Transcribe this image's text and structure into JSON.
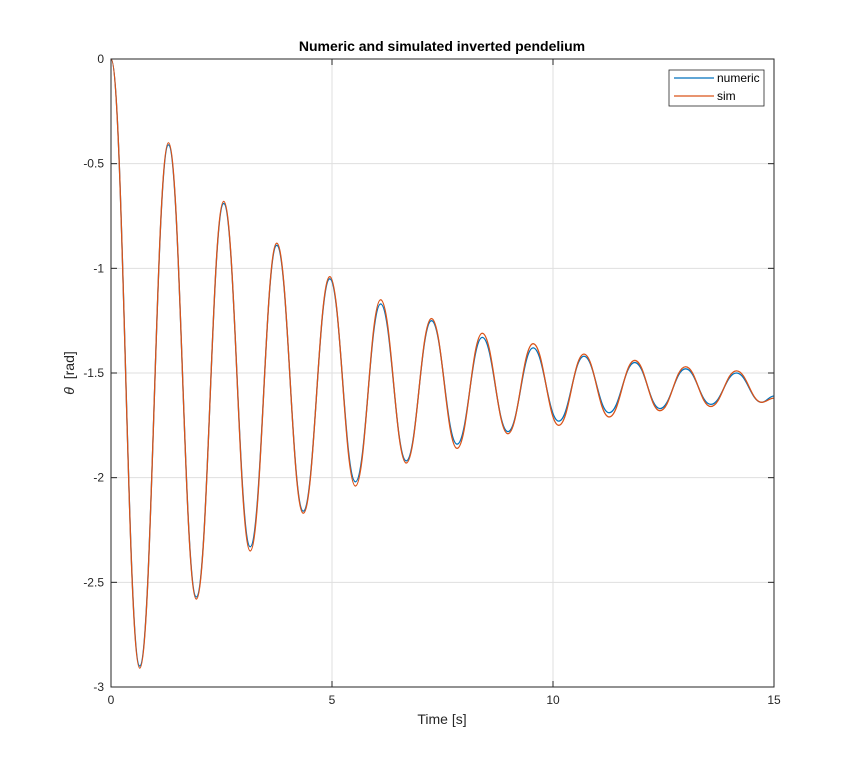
{
  "chart_data": {
    "type": "line",
    "title": "Numeric and simulated inverted pendelium",
    "xlabel": "Time [s]",
    "ylabel_symbol": "θ",
    "ylabel_unit": "[rad]",
    "xlim": [
      0,
      15
    ],
    "ylim": [
      -3,
      0
    ],
    "xticks": [
      0,
      5,
      10,
      15
    ],
    "yticks": [
      0,
      -0.5,
      -1,
      -1.5,
      -2,
      -2.5,
      -3
    ],
    "xtick_labels": [
      "0",
      "5",
      "10",
      "15"
    ],
    "ytick_labels": [
      "0",
      "-0.5",
      "-1",
      "-1.5",
      "-2",
      "-2.5",
      "-3"
    ],
    "grid": true,
    "legend_position": "top-right",
    "series": [
      {
        "name": "numeric",
        "color": "#0072BD",
        "x": [
          0,
          0.65,
          1.3,
          1.93,
          2.55,
          3.15,
          3.75,
          4.35,
          4.95,
          5.53,
          6.1,
          6.68,
          7.25,
          7.83,
          8.4,
          8.98,
          9.55,
          10.13,
          10.7,
          11.27,
          11.85,
          12.42,
          13.0,
          13.57,
          14.15,
          14.72,
          15
        ],
        "y": [
          0,
          -2.9,
          -0.41,
          -2.57,
          -0.69,
          -2.33,
          -0.89,
          -2.16,
          -1.05,
          -2.02,
          -1.17,
          -1.92,
          -1.25,
          -1.84,
          -1.33,
          -1.78,
          -1.38,
          -1.73,
          -1.42,
          -1.69,
          -1.45,
          -1.67,
          -1.48,
          -1.65,
          -1.5,
          -1.64,
          -1.61
        ]
      },
      {
        "name": "sim",
        "color": "#D95319",
        "x": [
          0,
          0.65,
          1.3,
          1.93,
          2.55,
          3.15,
          3.75,
          4.35,
          4.95,
          5.53,
          6.1,
          6.68,
          7.25,
          7.83,
          8.4,
          8.98,
          9.55,
          10.13,
          10.7,
          11.27,
          11.85,
          12.42,
          13.0,
          13.57,
          14.15,
          14.72,
          15
        ],
        "y": [
          0,
          -2.91,
          -0.4,
          -2.58,
          -0.68,
          -2.35,
          -0.88,
          -2.17,
          -1.04,
          -2.04,
          -1.15,
          -1.93,
          -1.24,
          -1.86,
          -1.31,
          -1.79,
          -1.36,
          -1.75,
          -1.41,
          -1.71,
          -1.44,
          -1.68,
          -1.47,
          -1.66,
          -1.49,
          -1.64,
          -1.62
        ]
      }
    ]
  }
}
